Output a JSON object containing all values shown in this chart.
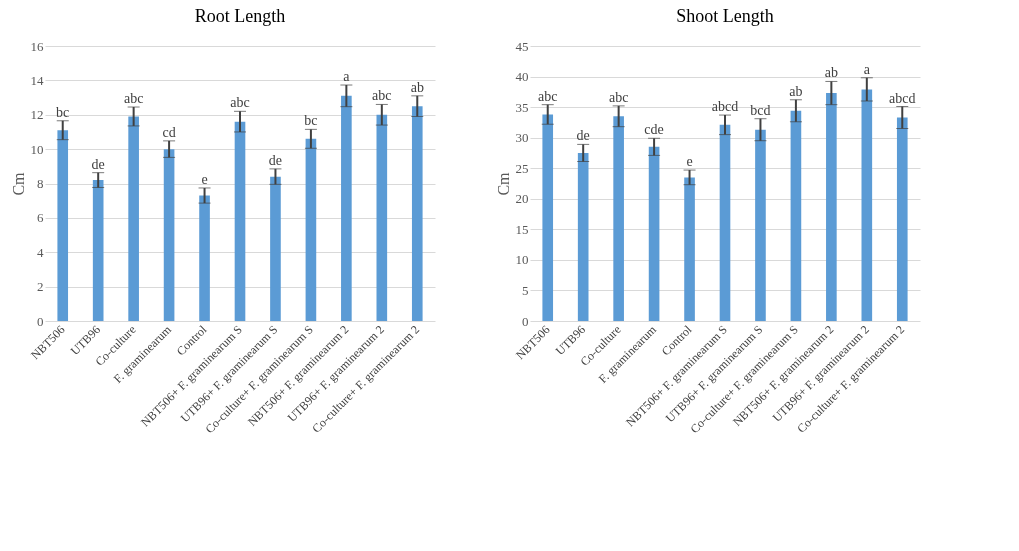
{
  "chart_data": [
    {
      "type": "bar",
      "title": "Root Length",
      "ylabel": "Cm",
      "categories": [
        "NBT506",
        "UTB96",
        "Co-culture",
        "F. graminearum",
        "Control",
        "NBT506+ F. graminearum S",
        "UTB96+ F. graminearum S",
        "Co-culture+ F. graminearum S",
        "NBT506+ F. graminearum 2",
        "UTB96+ F. graminearum 2",
        "Co-culture+ F. graminearum 2"
      ],
      "values": [
        11.1,
        8.2,
        11.9,
        10.0,
        7.3,
        11.6,
        8.4,
        10.6,
        13.1,
        12.0,
        12.5
      ],
      "errors": [
        0.55,
        0.43,
        0.55,
        0.48,
        0.44,
        0.6,
        0.45,
        0.55,
        0.63,
        0.6,
        0.6
      ],
      "color": "#5b9bd5",
      "ylim": [
        0,
        16
      ],
      "yticks": [
        0,
        2,
        4,
        6,
        8,
        10,
        12,
        14,
        16
      ],
      "grid": "y",
      "annotations": [
        {
          "text": "bc",
          "x": "NBT506",
          "y": 11.65
        },
        {
          "text": "de",
          "x": "UTB96",
          "y": 8.63
        },
        {
          "text": "abc",
          "x": "Co-culture",
          "y": 12.45
        },
        {
          "text": "cd",
          "x": "F. graminearum",
          "y": 10.48
        },
        {
          "text": "e",
          "x": "Control",
          "y": 7.74
        },
        {
          "text": "abc",
          "x": "NBT506+ F. graminearum S",
          "y": 12.2
        },
        {
          "text": "de",
          "x": "UTB96+ F. graminearum S",
          "y": 8.85
        },
        {
          "text": "bc",
          "x": "Co-culture+ F. graminearum S",
          "y": 11.15
        },
        {
          "text": "a",
          "x": "NBT506+ F. graminearum 2",
          "y": 13.73
        },
        {
          "text": "abc",
          "x": "UTB96+ F. graminearum 2",
          "y": 12.6
        },
        {
          "text": "ab",
          "x": "Co-culture+ F. graminearum 2",
          "y": 13.1
        }
      ]
    },
    {
      "type": "bar",
      "title": "Shoot Length",
      "ylabel": "Cm",
      "categories": [
        "NBT506",
        "UTB96",
        "Co-culture",
        "F. graminearum",
        "Control",
        "NBT506+ F. graminearum S",
        "UTB96+ F. graminearum S",
        "Co-culture+ F. graminearum S",
        "NBT506+ F. graminearum 2",
        "UTB96+ F. graminearum 2",
        "Co-culture+ F. graminearum 2"
      ],
      "values": [
        33.8,
        27.5,
        33.5,
        28.5,
        23.5,
        32.1,
        31.3,
        34.4,
        37.3,
        37.9,
        33.3
      ],
      "errors": [
        1.6,
        1.4,
        1.7,
        1.4,
        1.2,
        1.6,
        1.8,
        1.8,
        1.9,
        1.9,
        1.8
      ],
      "color": "#5b9bd5",
      "ylim": [
        0,
        45
      ],
      "yticks": [
        0,
        5,
        10,
        15,
        20,
        25,
        30,
        35,
        40,
        45
      ],
      "grid": "y",
      "annotations": [
        {
          "text": "abc",
          "x": "NBT506",
          "y": 35.4
        },
        {
          "text": "de",
          "x": "UTB96",
          "y": 28.9
        },
        {
          "text": "abc",
          "x": "Co-culture",
          "y": 35.2
        },
        {
          "text": "cde",
          "x": "F. graminearum",
          "y": 29.9
        },
        {
          "text": "e",
          "x": "Control",
          "y": 24.7
        },
        {
          "text": "abcd",
          "x": "NBT506+ F. graminearum S",
          "y": 33.7
        },
        {
          "text": "bcd",
          "x": "UTB96+ F. graminearum S",
          "y": 33.1
        },
        {
          "text": "ab",
          "x": "Co-culture+ F. graminearum S",
          "y": 36.2
        },
        {
          "text": "ab",
          "x": "NBT506+ F. graminearum 2",
          "y": 39.2
        },
        {
          "text": "a",
          "x": "UTB96+ F. graminearum 2",
          "y": 39.8
        },
        {
          "text": "abcd",
          "x": "Co-culture+ F. graminearum 2",
          "y": 35.1
        }
      ]
    }
  ]
}
